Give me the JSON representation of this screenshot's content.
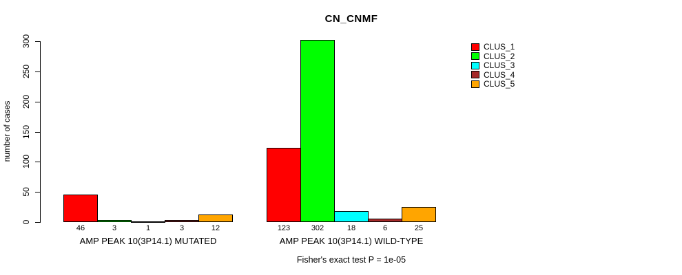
{
  "chart_data": {
    "type": "bar",
    "title": "CN_CNMF",
    "xlabel": "",
    "ylabel": "number of cases",
    "ylim": [
      0,
      300
    ],
    "yticks": [
      0,
      50,
      100,
      150,
      200,
      250,
      300
    ],
    "grid": false,
    "legend_position": "right-outside",
    "annotation": "Fisher's exact test P = 1e-05",
    "categories": [
      "AMP PEAK 10(3P14.1) MUTATED",
      "AMP PEAK 10(3P14.1) WILD-TYPE"
    ],
    "series": [
      {
        "name": "CLUS_1",
        "color": "#FF0000",
        "values": [
          46,
          123
        ]
      },
      {
        "name": "CLUS_2",
        "color": "#00FF00",
        "values": [
          3,
          302
        ]
      },
      {
        "name": "CLUS_3",
        "color": "#00FFFF",
        "values": [
          1,
          18
        ]
      },
      {
        "name": "CLUS_4",
        "color": "#A52A2A",
        "values": [
          3,
          6
        ]
      },
      {
        "name": "CLUS_5",
        "color": "#FFA500",
        "values": [
          12,
          25
        ]
      }
    ],
    "bar_value_labels_shown": true,
    "axis_color": "#000000",
    "background_color": "#FFFFFF"
  }
}
